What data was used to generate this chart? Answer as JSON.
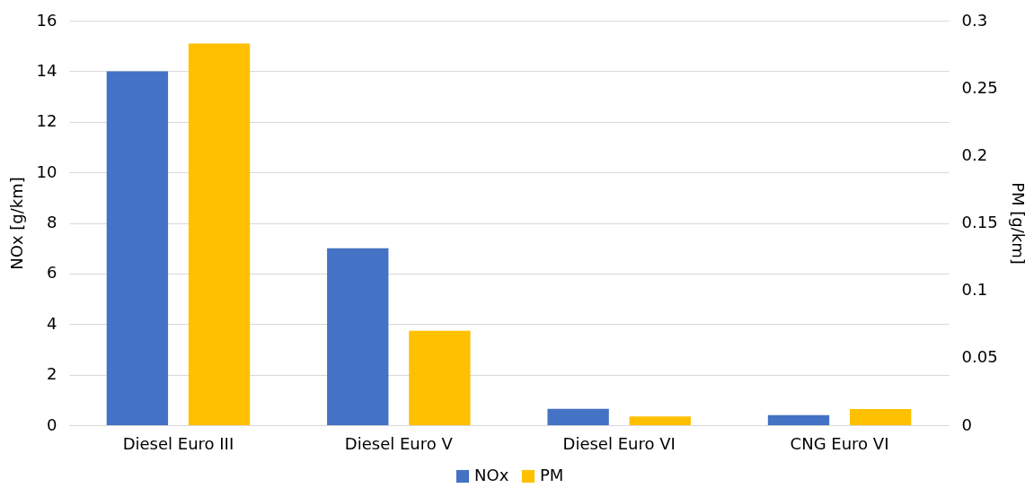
{
  "chart_data": {
    "type": "bar",
    "categories": [
      "Diesel Euro III",
      "Diesel Euro V",
      "Diesel Euro VI",
      "CNG Euro VI"
    ],
    "series": [
      {
        "name": "NOx",
        "color": "#4472c4",
        "values": [
          14.0,
          7.0,
          0.65,
          0.4
        ]
      },
      {
        "name": "PM",
        "color": "#ffc000",
        "axis": "y2",
        "values": [
          0.283,
          0.07,
          0.0065,
          0.012
        ]
      }
    ],
    "ylabel": "NOx [g/km]",
    "y2label": "PM [g/km]",
    "ylim": [
      0,
      16
    ],
    "yticks": [
      0,
      2,
      4,
      6,
      8,
      10,
      12,
      14,
      16
    ],
    "y2lim": [
      0,
      0.3
    ],
    "y2ticks": [
      0,
      0.05,
      0.1,
      0.15,
      0.2,
      0.25,
      0.3
    ],
    "grid": "y",
    "legend": "bottom"
  }
}
